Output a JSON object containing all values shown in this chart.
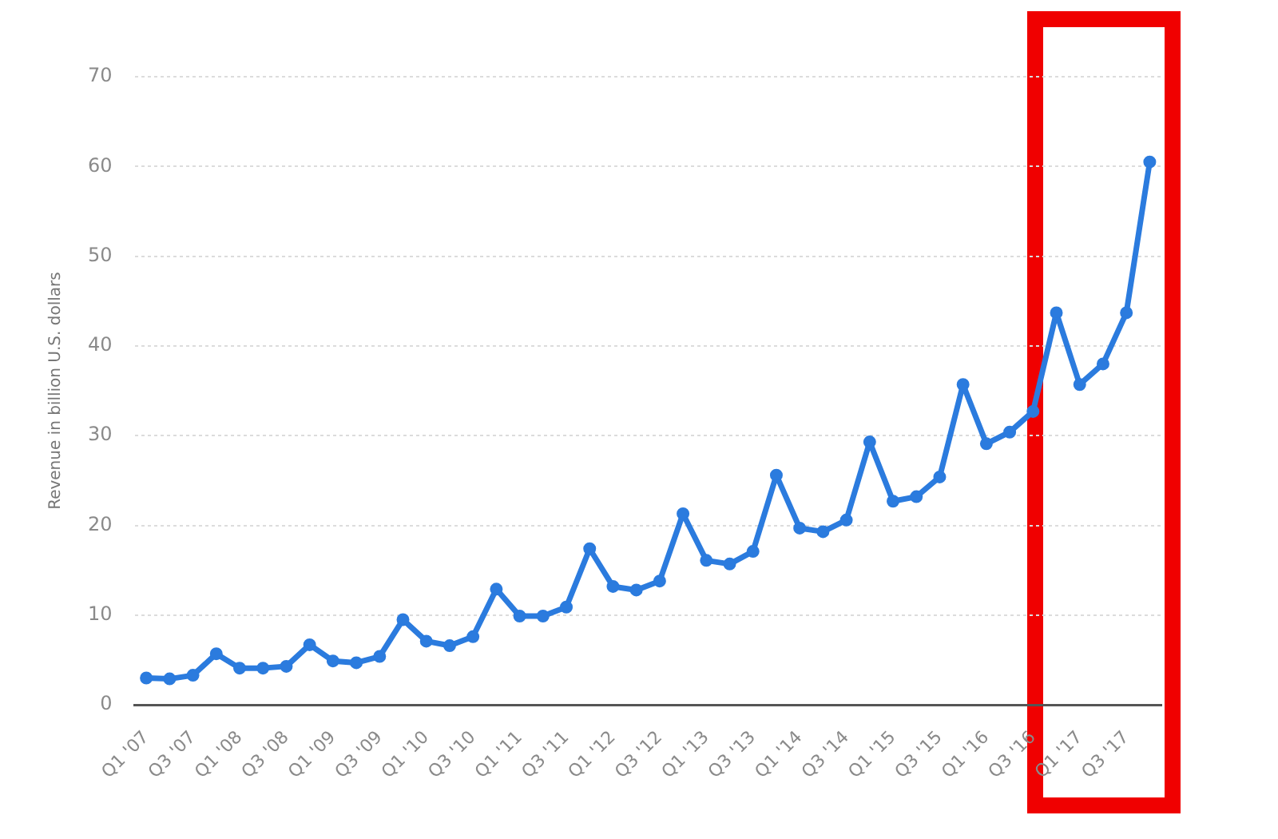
{
  "chart_data": {
    "type": "line",
    "categories": [
      "Q1 '07",
      null,
      "Q3 '07",
      null,
      "Q1 '08",
      null,
      "Q3 '08",
      null,
      "Q1 '09",
      null,
      "Q3 '09",
      null,
      "Q1 '10",
      null,
      "Q3 '10",
      null,
      "Q1 '11",
      null,
      "Q3 '11",
      null,
      "Q1 '12",
      null,
      "Q3 '12",
      null,
      "Q1 '13",
      null,
      "Q3 '13",
      null,
      "Q1 '14",
      null,
      "Q3 '14",
      null,
      "Q1 '15",
      null,
      "Q3 '15",
      null,
      "Q1 '16",
      null,
      "Q3 '16",
      null,
      "Q1 '17",
      null,
      "Q3 '17",
      null
    ],
    "values": [
      3.0,
      2.9,
      3.3,
      5.7,
      4.1,
      4.1,
      4.3,
      6.7,
      4.9,
      4.7,
      5.4,
      9.5,
      7.1,
      6.6,
      7.6,
      12.9,
      9.9,
      9.9,
      10.9,
      17.4,
      13.2,
      12.8,
      13.8,
      21.3,
      16.1,
      15.7,
      17.1,
      25.6,
      19.7,
      19.3,
      20.6,
      29.3,
      22.7,
      23.2,
      25.4,
      35.7,
      29.1,
      30.4,
      32.7,
      43.7,
      35.7,
      38.0,
      43.7,
      60.5
    ],
    "color": "#2b7bde",
    "ylabel": "Revenue in billion U.S. dollars",
    "ylim": [
      0,
      70
    ],
    "yticks": [
      0,
      10,
      20,
      30,
      40,
      50,
      60,
      70
    ],
    "grid": "y",
    "marker": "circle",
    "line_style": "solid"
  }
}
